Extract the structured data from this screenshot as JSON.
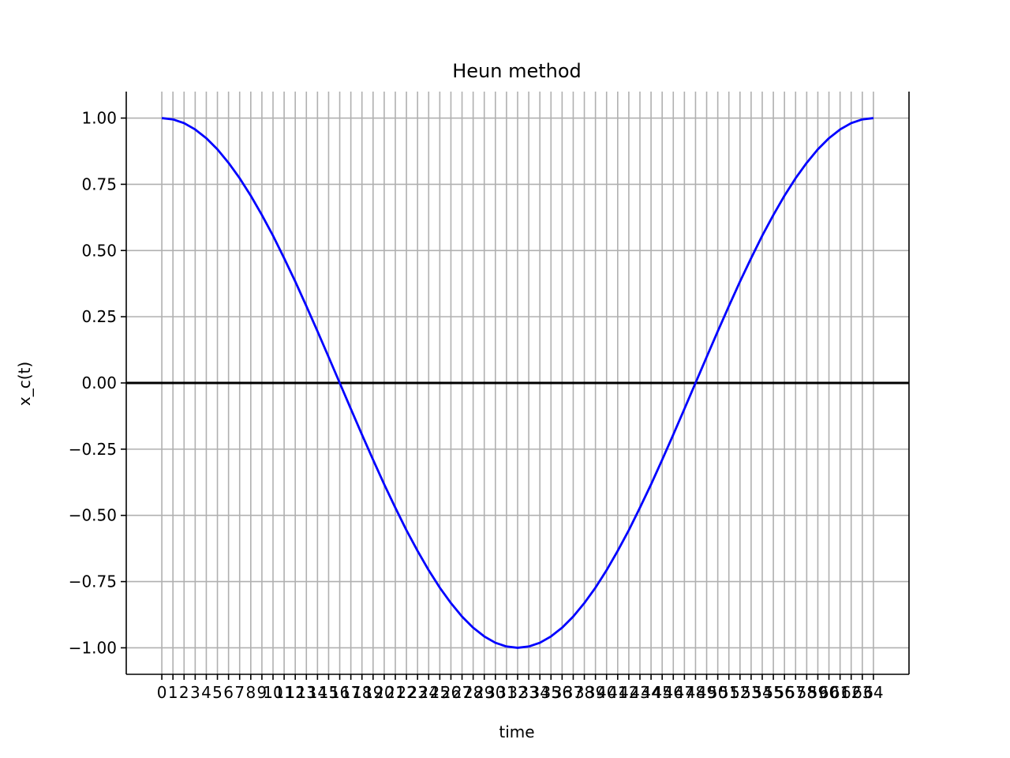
{
  "chart_data": {
    "type": "line",
    "title": "Heun method",
    "xlabel": "time",
    "ylabel": "x_c(t)",
    "grid": true,
    "xlim": [
      -3.2,
      67.2
    ],
    "ylim": [
      -1.1,
      1.1
    ],
    "x_ticks": [
      0,
      1,
      2,
      3,
      4,
      5,
      6,
      7,
      8,
      9,
      10,
      11,
      12,
      13,
      14,
      15,
      16,
      17,
      18,
      19,
      20,
      21,
      22,
      23,
      24,
      25,
      26,
      27,
      28,
      29,
      30,
      31,
      32,
      33,
      34,
      35,
      36,
      37,
      38,
      39,
      40,
      41,
      42,
      43,
      44,
      45,
      46,
      47,
      48,
      49,
      50,
      51,
      52,
      53,
      54,
      55,
      56,
      57,
      58,
      59,
      60,
      61,
      62,
      63,
      64
    ],
    "y_ticks": [
      1.0,
      0.75,
      0.5,
      0.25,
      0.0,
      -0.25,
      -0.5,
      -0.75,
      -1.0
    ],
    "y_tick_labels": [
      "1.00",
      "0.75",
      "0.50",
      "0.25",
      "0.00",
      "−0.25",
      "−0.50",
      "−0.75",
      "−1.00"
    ],
    "reference_line": {
      "y": 0.0,
      "color": "#000000"
    },
    "series": [
      {
        "color": "#0000ff",
        "x": [
          0,
          1,
          2,
          3,
          4,
          5,
          6,
          7,
          8,
          9,
          10,
          11,
          12,
          13,
          14,
          15,
          16,
          17,
          18,
          19,
          20,
          21,
          22,
          23,
          24,
          25,
          26,
          27,
          28,
          29,
          30,
          31,
          32,
          33,
          34,
          35,
          36,
          37,
          38,
          39,
          40,
          41,
          42,
          43,
          44,
          45,
          46,
          47,
          48,
          49,
          50,
          51,
          52,
          53,
          54,
          55,
          56,
          57,
          58,
          59,
          60,
          61,
          62,
          63,
          64
        ],
        "y": [
          1.0,
          0.995,
          0.981,
          0.957,
          0.924,
          0.882,
          0.831,
          0.773,
          0.707,
          0.634,
          0.556,
          0.471,
          0.383,
          0.29,
          0.195,
          0.098,
          0.0,
          -0.098,
          -0.195,
          -0.29,
          -0.383,
          -0.471,
          -0.556,
          -0.634,
          -0.707,
          -0.773,
          -0.831,
          -0.882,
          -0.924,
          -0.957,
          -0.981,
          -0.995,
          -1.0,
          -0.995,
          -0.981,
          -0.957,
          -0.924,
          -0.882,
          -0.831,
          -0.773,
          -0.707,
          -0.634,
          -0.556,
          -0.471,
          -0.383,
          -0.29,
          -0.195,
          -0.098,
          0.0,
          0.098,
          0.195,
          0.29,
          0.383,
          0.471,
          0.556,
          0.634,
          0.707,
          0.773,
          0.831,
          0.882,
          0.924,
          0.957,
          0.981,
          0.995,
          1.0
        ]
      }
    ]
  }
}
